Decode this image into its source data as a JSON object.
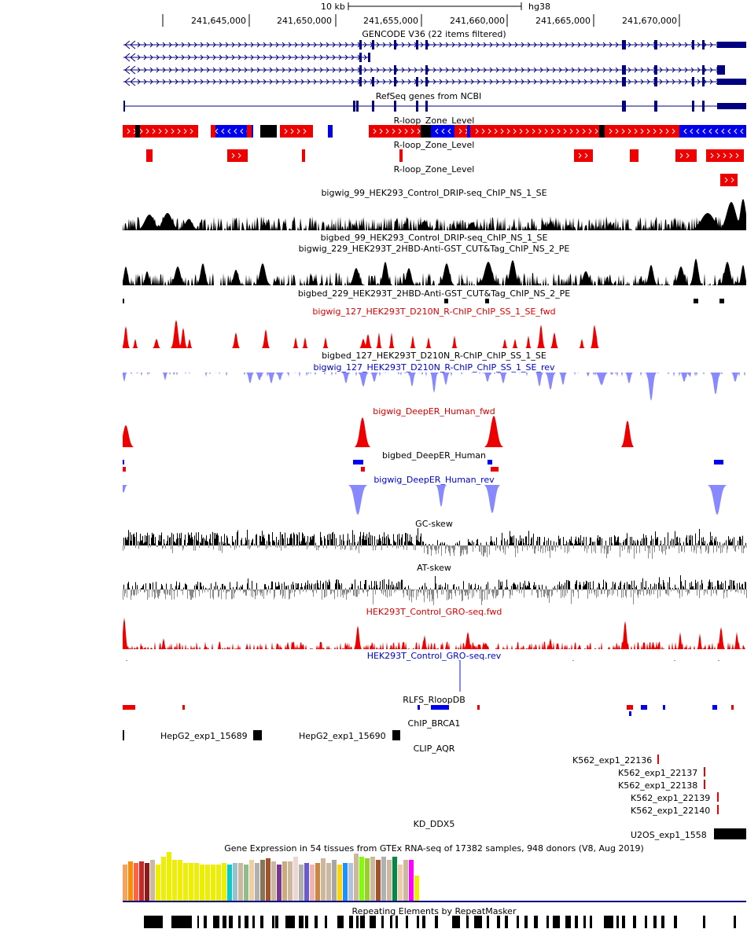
{
  "ruler": {
    "scale_label": "10 kb",
    "assembly": "hg38",
    "ticks": [
      "241,645,000",
      "241,650,000",
      "241,655,000",
      "241,660,000",
      "241,665,000",
      "241,670,000"
    ]
  },
  "tracks": {
    "gencode": "GENCODE V36 (22 items filtered)",
    "refseq": "RefSeq genes from NCBI",
    "rloop1": "R-loop_Zone_Level",
    "rloop2": "R-loop_Zone_Level",
    "rloop3": "R-loop_Zone_Level",
    "drip_bigwig": "bigwig_99_HEK293_Control_DRIP-seq_ChIP_NS_1_SE",
    "drip_bigbed": "bigbed_99_HEK293_Control_DRIP-seq_ChIP_NS_1_SE",
    "cuttag_bigwig": "bigwig_229_HEK293T_2HBD-Anti-GST_CUT&Tag_ChIP_NS_2_PE",
    "cuttag_bigbed": "bigbed_229_HEK293T_2HBD-Anti-GST_CUT&Tag_ChIP_NS_2_PE",
    "rchip_fwd": "bigwig_127_HEK293T_D210N_R-ChIP_ChIP_SS_1_SE_fwd",
    "rchip_bigbed": "bigbed_127_HEK293T_D210N_R-ChIP_ChIP_SS_1_SE",
    "rchip_rev": "bigwig_127_HEK293T_D210N_R-ChIP_ChIP_SS_1_SE_rev",
    "deeper_fwd": "bigwig_DeepER_Human_fwd",
    "deeper_bigbed": "bigbed_DeepER_Human",
    "deeper_rev": "bigwig_DeepER_Human_rev",
    "gc_skew": "GC-skew",
    "at_skew": "AT-skew",
    "gro_fwd": "HEK293T_Control_GRO-seq.fwd",
    "gro_rev": "HEK293T_Control_GRO-seq.rev",
    "rlfs": "RLFS_RloopDB",
    "chip_brca1": "ChIP_BRCA1",
    "clip_aqr": "CLIP_AQR",
    "kd_ddx5": "KD_DDX5",
    "gtex": "Gene Expression in 54 tissues from GTEx RNA-seq of 17382 samples, 948 donors (V8, Aug 2019)",
    "repeatmasker": "Repeating Elements by RepeatMasker"
  },
  "features": {
    "brca1_1": "HepG2_exp1_15689",
    "brca1_2": "HepG2_exp1_15690",
    "aqr_1": "K562_exp1_22136",
    "aqr_2": "K562_exp1_22137",
    "aqr_3": "K562_exp1_22138",
    "aqr_4": "K562_exp1_22139",
    "aqr_5": "K562_exp1_22140",
    "ddx5_1": "U2OS_exp1_1558"
  },
  "colors": {
    "gene": "#000080",
    "rloop_fwd": "#ee0000",
    "rloop_rev": "#0000ee",
    "signal_black": "#000000",
    "signal_red": "#ee0000",
    "signal_blue": "#8888ff",
    "skew_neg": "#888888"
  }
}
